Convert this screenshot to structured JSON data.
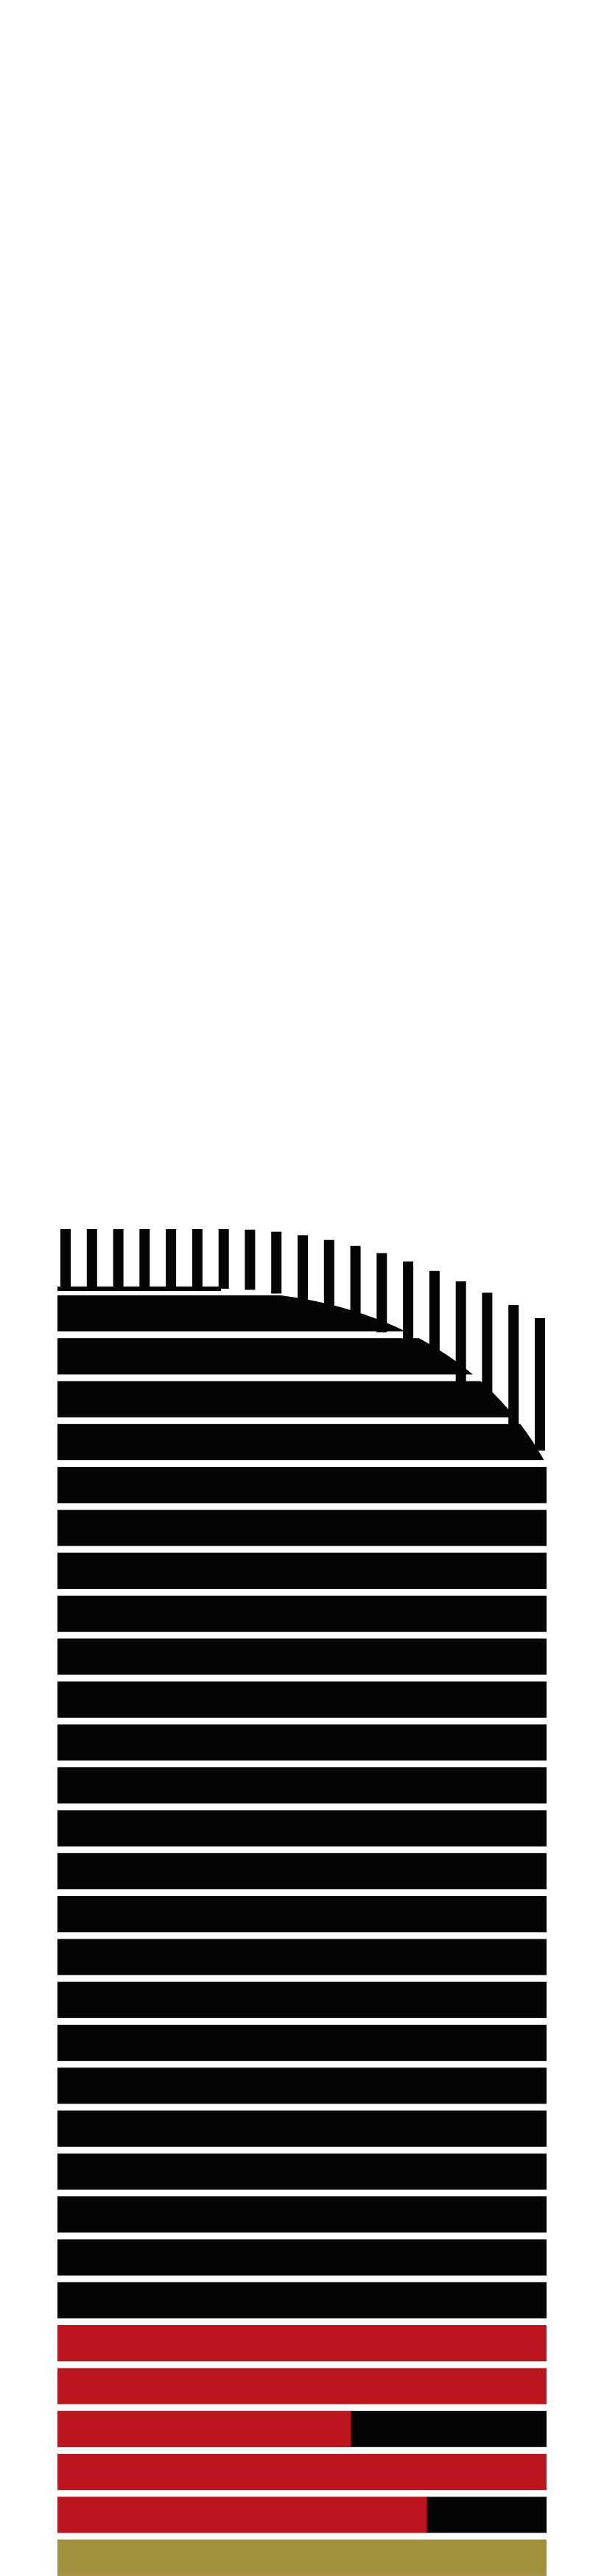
{
  "colors": {
    "background": "#ffffff",
    "dark": "#050505",
    "red": "#bb151d",
    "olive": "#a1913f"
  },
  "rows": [
    {
      "color": "dark",
      "fill": 1.0
    },
    {
      "color": "dark",
      "fill": 1.0
    },
    {
      "color": "dark",
      "fill": 1.0
    },
    {
      "color": "dark",
      "fill": 1.0
    },
    {
      "color": "dark",
      "fill": 1.0
    },
    {
      "color": "dark",
      "fill": 1.0
    },
    {
      "color": "dark",
      "fill": 1.0
    },
    {
      "color": "dark",
      "fill": 1.0
    },
    {
      "color": "dark",
      "fill": 1.0
    },
    {
      "color": "dark",
      "fill": 1.0
    },
    {
      "color": "dark",
      "fill": 1.0
    },
    {
      "color": "dark",
      "fill": 1.0
    },
    {
      "color": "dark",
      "fill": 1.0
    },
    {
      "color": "dark",
      "fill": 1.0
    },
    {
      "color": "dark",
      "fill": 1.0
    },
    {
      "color": "dark",
      "fill": 1.0
    },
    {
      "color": "dark",
      "fill": 1.0
    },
    {
      "color": "dark",
      "fill": 1.0
    },
    {
      "color": "dark",
      "fill": 1.0
    },
    {
      "color": "dark",
      "fill": 1.0
    },
    {
      "color": "dark",
      "fill": 1.0
    },
    {
      "color": "dark",
      "fill": 1.0
    },
    {
      "color": "dark",
      "fill": 1.0
    },
    {
      "color": "dark",
      "fill": 1.0
    },
    {
      "color": "red",
      "fill": 1.0
    },
    {
      "color": "red",
      "fill": 1.0
    },
    {
      "color": "red",
      "fill": 0.6
    },
    {
      "color": "red",
      "fill": 1.0
    },
    {
      "color": "red",
      "fill": 0.755
    },
    {
      "color": "olive",
      "fill": 1.0
    }
  ],
  "comb_tooth_count": 19
}
